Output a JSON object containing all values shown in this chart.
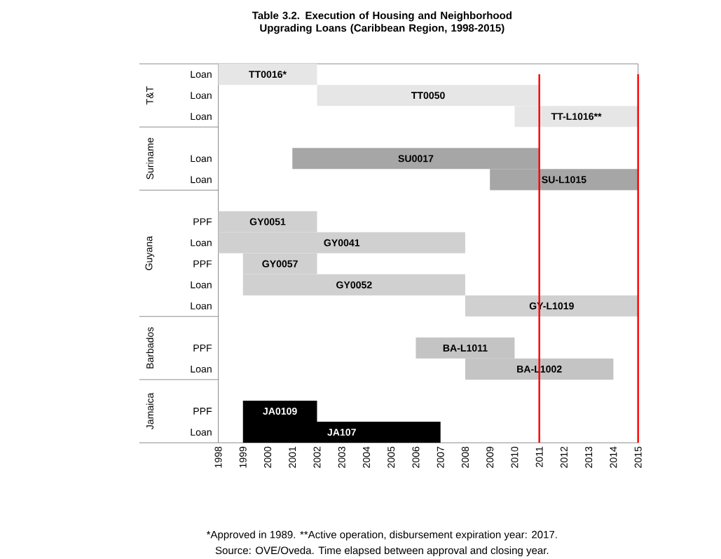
{
  "chart_data": {
    "type": "bar",
    "orientation": "horizontal",
    "title": "Table 3.2. Execution of Housing and Neighborhood Upgrading Loans (Caribbean Region, 1998-2015)",
    "categories": [
      "Loan",
      "Loan",
      "Loan",
      null,
      "Loan",
      "Loan",
      null,
      "PPF",
      "Loan",
      "PPF",
      "Loan",
      "Loan",
      null,
      "PPF",
      "Loan",
      null,
      "PPF",
      "Loan"
    ],
    "base": [
      1998,
      2002,
      2010,
      null,
      2001,
      2009,
      null,
      1998,
      1998,
      1999,
      1999,
      2008,
      null,
      2006,
      2008,
      null,
      1999,
      1999
    ],
    "values": [
      4,
      9,
      5,
      null,
      10,
      6,
      null,
      4,
      10,
      3,
      9,
      7,
      null,
      4,
      6,
      null,
      3,
      8
    ],
    "value_labels": [
      "TT0016*",
      "TT0050",
      "TT-L1016**",
      null,
      "SU0017",
      "SU-L1015",
      null,
      "GY0051",
      "GY0041",
      "GY0057",
      "GY0052",
      "GY-L1019",
      null,
      "BA-L1011",
      "BA-L1002",
      null,
      "JA0109",
      "JA107"
    ],
    "colors": [
      "#e6e6e6",
      "#e6e6e6",
      "#e6e6e6",
      null,
      "#a6a6a6",
      "#a6a6a6",
      null,
      "#d0d0d0",
      "#d0d0d0",
      "#d0d0d0",
      "#d0d0d0",
      "#d0d0d0",
      null,
      "#c4c4c4",
      "#c4c4c4",
      null,
      "#000000",
      "#000000"
    ],
    "xlim": [
      1998,
      2015
    ],
    "xticks": [
      1998,
      1999,
      2000,
      2001,
      2002,
      2003,
      2004,
      2005,
      2006,
      2007,
      2008,
      2009,
      2010,
      2011,
      2012,
      2013,
      2014,
      2015
    ],
    "ref_lines": [
      {
        "axis": "x",
        "value": 2011,
        "color": "#ff0000"
      },
      {
        "axis": "x",
        "value": 2015,
        "color": "#ff0000"
      }
    ],
    "annotations": [
      "T&T",
      "Suriname",
      "Guyana",
      "Barbados",
      "Jamaica",
      "*Approved in 1989. **Active operation, disbursement expiration year: 2017.",
      "Source: OVE/Oveda. Time elapsed between approval and closing year."
    ]
  }
}
